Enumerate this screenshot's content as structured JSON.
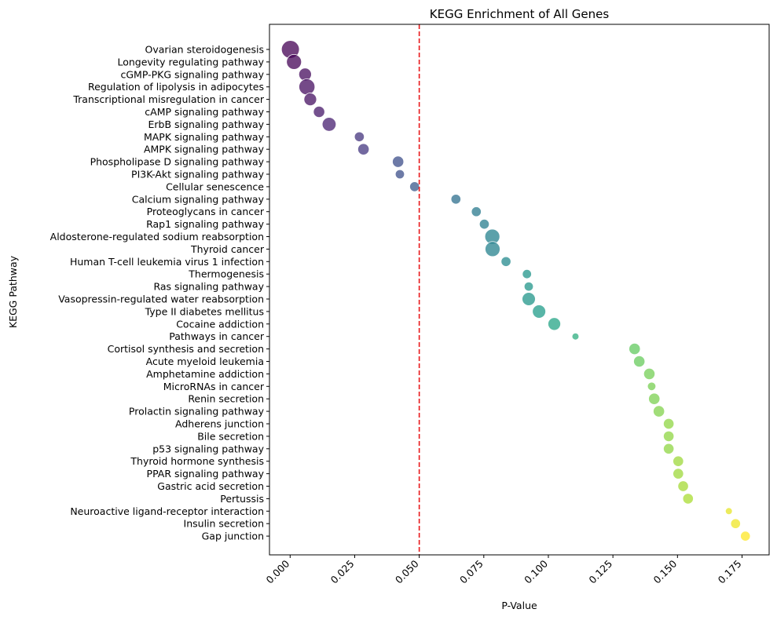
{
  "chart_data": {
    "type": "scatter",
    "title": "KEGG Enrichment of All Genes",
    "xlabel": "P-Value",
    "ylabel": "KEGG Pathway",
    "xlim": [
      -0.008,
      0.1855
    ],
    "x_ticks": [
      0.0,
      0.025,
      0.05,
      0.075,
      0.1,
      0.125,
      0.15,
      0.175
    ],
    "x_tick_labels": [
      "0.000",
      "0.025",
      "0.050",
      "0.075",
      "0.100",
      "0.125",
      "0.150",
      "0.175"
    ],
    "threshold": 0.05,
    "threshold_color": "#e8191b",
    "grid": false,
    "colormap": "viridis",
    "points": [
      {
        "pathway": "Ovarian steroidogenesis",
        "p_value": 0.0001,
        "size": 10
      },
      {
        "pathway": "Longevity regulating pathway",
        "p_value": 0.0015,
        "size": 7
      },
      {
        "pathway": "cGMP-PKG signaling pathway",
        "p_value": 0.0058,
        "size": 5
      },
      {
        "pathway": "Regulation of lipolysis in adipocytes",
        "p_value": 0.0065,
        "size": 8
      },
      {
        "pathway": "Transcriptional misregulation in cancer",
        "p_value": 0.0078,
        "size": 5
      },
      {
        "pathway": "cAMP signaling pathway",
        "p_value": 0.0112,
        "size": 4
      },
      {
        "pathway": "ErbB signaling pathway",
        "p_value": 0.0151,
        "size": 6
      },
      {
        "pathway": "MAPK signaling pathway",
        "p_value": 0.0268,
        "size": 3
      },
      {
        "pathway": "AMPK signaling pathway",
        "p_value": 0.0284,
        "size": 4
      },
      {
        "pathway": "Phospholipase D signaling pathway",
        "p_value": 0.0418,
        "size": 4
      },
      {
        "pathway": "PI3K-Akt signaling pathway",
        "p_value": 0.0425,
        "size": 2.6
      },
      {
        "pathway": "Cellular senescence",
        "p_value": 0.0482,
        "size": 3
      },
      {
        "pathway": "Calcium signaling pathway",
        "p_value": 0.0642,
        "size": 3
      },
      {
        "pathway": "Proteoglycans in cancer",
        "p_value": 0.0721,
        "size": 3
      },
      {
        "pathway": "Rap1 signaling pathway",
        "p_value": 0.0752,
        "size": 3
      },
      {
        "pathway": "Aldosterone-regulated sodium reabsorption",
        "p_value": 0.0783,
        "size": 7
      },
      {
        "pathway": "Thyroid cancer",
        "p_value": 0.0784,
        "size": 7
      },
      {
        "pathway": "Human T-cell leukemia virus 1 infection",
        "p_value": 0.0836,
        "size": 3
      },
      {
        "pathway": "Thermogenesis",
        "p_value": 0.0917,
        "size": 2.6
      },
      {
        "pathway": "Ras signaling pathway",
        "p_value": 0.0924,
        "size": 2.6
      },
      {
        "pathway": "Vasopressin-regulated water reabsorption",
        "p_value": 0.0924,
        "size": 5.5
      },
      {
        "pathway": "Type II diabetes mellitus",
        "p_value": 0.0964,
        "size": 5.5
      },
      {
        "pathway": "Cocaine addiction",
        "p_value": 0.1023,
        "size": 5
      },
      {
        "pathway": "Pathways in cancer",
        "p_value": 0.1105,
        "size": 1.5
      },
      {
        "pathway": "Cortisol synthesis and secretion",
        "p_value": 0.1334,
        "size": 4
      },
      {
        "pathway": "Acute myeloid leukemia",
        "p_value": 0.1352,
        "size": 4
      },
      {
        "pathway": "Amphetamine addiction",
        "p_value": 0.1391,
        "size": 4
      },
      {
        "pathway": "MicroRNAs in cancer",
        "p_value": 0.14,
        "size": 2.2
      },
      {
        "pathway": "Renin secretion",
        "p_value": 0.141,
        "size": 4
      },
      {
        "pathway": "Prolactin signaling pathway",
        "p_value": 0.1428,
        "size": 4
      },
      {
        "pathway": "Adherens junction",
        "p_value": 0.1466,
        "size": 3.5
      },
      {
        "pathway": "Bile secretion",
        "p_value": 0.1466,
        "size": 3.5
      },
      {
        "pathway": "p53 signaling pathway",
        "p_value": 0.1466,
        "size": 3.5
      },
      {
        "pathway": "Thyroid hormone synthesis",
        "p_value": 0.1503,
        "size": 3.5
      },
      {
        "pathway": "PPAR signaling pathway",
        "p_value": 0.1503,
        "size": 3.5
      },
      {
        "pathway": "Gastric acid secretion",
        "p_value": 0.1522,
        "size": 3.5
      },
      {
        "pathway": "Pertussis",
        "p_value": 0.1541,
        "size": 3.5
      },
      {
        "pathway": "Neuroactive ligand-receptor interaction",
        "p_value": 0.1699,
        "size": 1.5
      },
      {
        "pathway": "Insulin secretion",
        "p_value": 0.1725,
        "size": 3
      },
      {
        "pathway": "Gap junction",
        "p_value": 0.1763,
        "size": 3
      }
    ]
  }
}
